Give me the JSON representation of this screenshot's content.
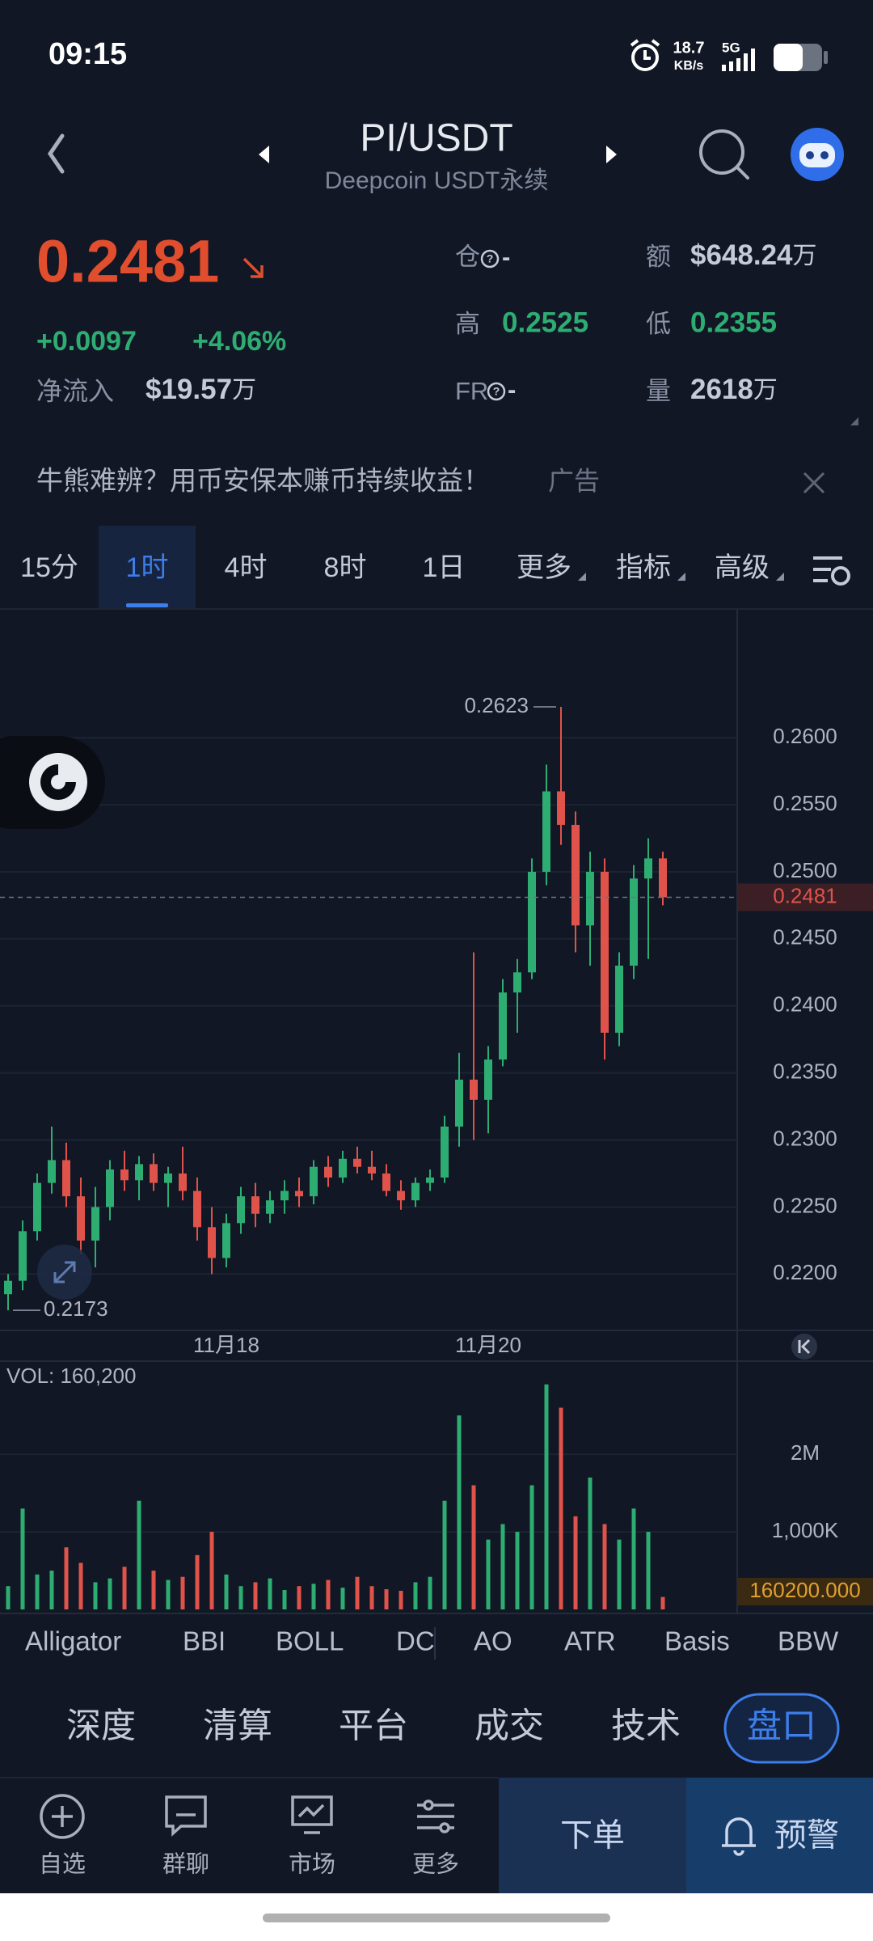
{
  "status_bar": {
    "time": "09:15",
    "speed": "18.7",
    "speed_unit": "KB/s",
    "network": "5G"
  },
  "header": {
    "pair": "PI/USDT",
    "exchange": "Deepcoin USDT永续"
  },
  "ticker": {
    "last": "0.2481",
    "change": "+0.0097",
    "change_pct": "+4.06%",
    "net_inflow_label": "净流入",
    "net_inflow": "$19.57",
    "net_inflow_unit": "万",
    "position_label": "仓",
    "position": "-",
    "turnover_label": "额",
    "turnover": "$648.24",
    "turnover_unit": "万",
    "high_label": "高",
    "high": "0.2525",
    "low_label": "低",
    "low": "0.2355",
    "fr_label": "FR",
    "fr": "-",
    "volume_label": "量",
    "volume": "2618",
    "volume_unit": "万"
  },
  "ad": {
    "text": "牛熊难辨？用币安保本赚币持续收益！",
    "tag": "广告"
  },
  "timeframes": {
    "items": [
      "15分",
      "1时",
      "4时",
      "8时",
      "1日",
      "更多",
      "指标",
      "高级"
    ],
    "active": 1
  },
  "chart_data": [
    {
      "type": "candlestick",
      "categories": [
        null,
        null,
        null,
        null,
        null,
        null,
        null,
        null,
        null,
        null,
        null,
        null,
        null,
        null,
        null,
        "11月18",
        null,
        null,
        null,
        null,
        null,
        null,
        null,
        null,
        null,
        null,
        null,
        null,
        null,
        null,
        null,
        null,
        null,
        "11月20",
        null,
        null,
        null,
        null,
        null,
        null,
        null,
        null,
        null,
        null,
        null,
        null
      ],
      "open": [
        0.2185,
        0.2195,
        0.2232,
        0.2268,
        0.2285,
        0.2258,
        0.2225,
        0.225,
        0.2278,
        0.227,
        0.2282,
        0.2268,
        0.2275,
        0.2262,
        0.2235,
        0.2212,
        0.2238,
        0.2258,
        0.2245,
        0.2255,
        0.2262,
        0.2258,
        0.228,
        0.2272,
        0.2286,
        0.228,
        0.2275,
        0.2262,
        0.2255,
        0.2268,
        0.2272,
        0.231,
        0.2345,
        0.233,
        0.236,
        0.241,
        0.2425,
        0.25,
        0.256,
        0.2535,
        0.246,
        0.25,
        0.238,
        0.243,
        0.2495,
        0.251
      ],
      "high": [
        0.22,
        0.224,
        0.2275,
        0.231,
        0.2298,
        0.2272,
        0.2265,
        0.2285,
        0.2292,
        0.2288,
        0.229,
        0.228,
        0.2295,
        0.2272,
        0.225,
        0.2245,
        0.2265,
        0.2268,
        0.2262,
        0.227,
        0.2272,
        0.2285,
        0.2288,
        0.2292,
        0.2295,
        0.2292,
        0.2282,
        0.227,
        0.2272,
        0.2278,
        0.2318,
        0.2365,
        0.244,
        0.237,
        0.242,
        0.2435,
        0.251,
        0.258,
        0.2623,
        0.2545,
        0.2515,
        0.251,
        0.244,
        0.2505,
        0.2525,
        0.2515
      ],
      "low": [
        0.2173,
        0.2188,
        0.2225,
        0.226,
        0.225,
        0.2215,
        0.2205,
        0.224,
        0.2262,
        0.2255,
        0.2262,
        0.225,
        0.2255,
        0.2225,
        0.22,
        0.2205,
        0.223,
        0.2235,
        0.2238,
        0.2245,
        0.225,
        0.2252,
        0.2265,
        0.2268,
        0.2275,
        0.227,
        0.2258,
        0.2248,
        0.225,
        0.2262,
        0.2268,
        0.2295,
        0.23,
        0.2305,
        0.2355,
        0.238,
        0.242,
        0.249,
        0.252,
        0.244,
        0.243,
        0.236,
        0.237,
        0.242,
        0.2435,
        0.2475
      ],
      "close": [
        0.2195,
        0.2232,
        0.2268,
        0.2285,
        0.2258,
        0.2225,
        0.225,
        0.2278,
        0.227,
        0.2282,
        0.2268,
        0.2275,
        0.2262,
        0.2235,
        0.2212,
        0.2238,
        0.2258,
        0.2245,
        0.2255,
        0.2262,
        0.2258,
        0.228,
        0.2272,
        0.2286,
        0.228,
        0.2275,
        0.2262,
        0.2255,
        0.2268,
        0.2272,
        0.231,
        0.2345,
        0.233,
        0.236,
        0.241,
        0.2425,
        0.25,
        0.256,
        0.2535,
        0.246,
        0.25,
        0.238,
        0.243,
        0.2495,
        0.251,
        0.2481
      ],
      "ylim": [
        0.2158,
        0.2696
      ],
      "yticks": [
        {
          "value": 0.22,
          "label": "0.2200"
        },
        {
          "value": 0.225,
          "label": "0.2250"
        },
        {
          "value": 0.23,
          "label": "0.2300"
        },
        {
          "value": 0.235,
          "label": "0.2350"
        },
        {
          "value": 0.24,
          "label": "0.2400"
        },
        {
          "value": 0.245,
          "label": "0.2450"
        },
        {
          "value": 0.25,
          "label": "0.2500"
        },
        {
          "value": 0.255,
          "label": "0.2550"
        },
        {
          "value": 0.26,
          "label": "0.2600"
        }
      ],
      "up_color": "#2ead73",
      "down_color": "#e0534a",
      "grid": true
    },
    {
      "type": "bar",
      "title": "VOL: 160,200",
      "values": [
        300000,
        1300000,
        450000,
        500000,
        800000,
        600000,
        350000,
        400000,
        550000,
        1400000,
        500000,
        380000,
        420000,
        700000,
        1000000,
        450000,
        300000,
        350000,
        400000,
        250000,
        300000,
        330000,
        380000,
        280000,
        420000,
        300000,
        260000,
        240000,
        350000,
        420000,
        1400000,
        2500000,
        1600000,
        900000,
        1100000,
        1000000,
        1600000,
        2900000,
        2600000,
        1200000,
        1700000,
        1100000,
        900000,
        1300000,
        1000000,
        160200
      ],
      "value_label": "160200.000",
      "ylim": [
        0,
        3200000
      ],
      "yticks": [
        {
          "value": 1000000,
          "label": "1,000K"
        },
        {
          "value": 2000000,
          "label": "2M"
        }
      ],
      "grid": true
    }
  ],
  "indicators": [
    "Alligator",
    "BBI",
    "BOLL",
    "DC",
    "AO",
    "ATR",
    "Basis",
    "BBW"
  ],
  "detail_tabs": {
    "items": [
      "深度",
      "清算",
      "平台",
      "成交",
      "技术",
      "盘口"
    ],
    "active": 5
  },
  "nav": {
    "items": [
      "自选",
      "群聊",
      "市场",
      "更多"
    ],
    "order": "下单",
    "alert": "预警"
  }
}
